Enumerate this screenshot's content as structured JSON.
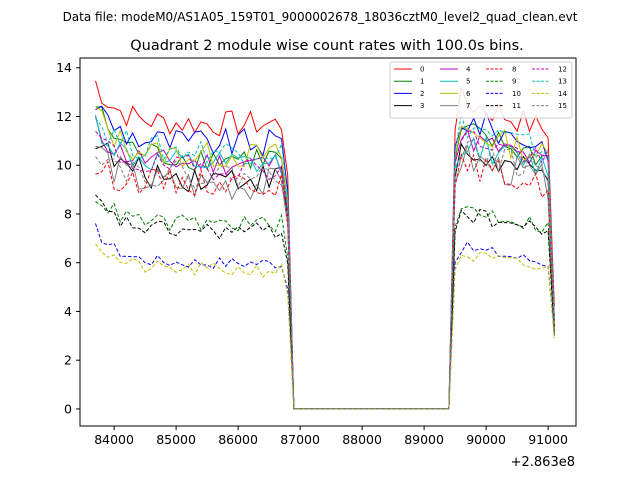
{
  "chart_data": {
    "type": "line",
    "suptitle": "Data file: modeM0/AS1A05_159T01_9000002678_18036cztM0_level2_quad_clean.evt",
    "title": "Quadrant 2 module wise count rates with 100.0s bins.",
    "xlabel": "",
    "ylabel": "",
    "x_offset_label": "+2.863e8",
    "xlim": [
      83450,
      91450
    ],
    "ylim": [
      -0.7,
      14.4
    ],
    "xticks": [
      84000,
      85000,
      86000,
      87000,
      88000,
      89000,
      90000,
      91000
    ],
    "yticks": [
      0,
      2,
      4,
      6,
      8,
      10,
      12,
      14
    ],
    "xticklabels": [
      "84000",
      "85000",
      "86000",
      "87000",
      "88000",
      "89000",
      "90000",
      "91000"
    ],
    "yticklabels": [
      "0",
      "2",
      "4",
      "6",
      "8",
      "10",
      "12",
      "14"
    ],
    "legend_position": "top-right",
    "segment_breaks": {
      "seg1_x": [
        83700,
        86800
      ],
      "drop_to_zero_x": 86900,
      "zero_x": [
        86900,
        89400
      ],
      "seg2_x": [
        89500,
        91100
      ],
      "bin_seconds": 100
    },
    "series": [
      {
        "name": "0",
        "color": "#ff0000",
        "dash": false,
        "level1": 11.7,
        "level2": 11.8,
        "start": 13.4,
        "end": 4.2,
        "noise": 0.55
      },
      {
        "name": "1",
        "color": "#008000",
        "dash": false,
        "level1": 10.3,
        "level2": 10.6,
        "start": 12.5,
        "end": 3.4,
        "noise": 0.55
      },
      {
        "name": "2",
        "color": "#0000ff",
        "dash": false,
        "level1": 10.9,
        "level2": 11.1,
        "start": 12.6,
        "end": 3.8,
        "noise": 0.6
      },
      {
        "name": "3",
        "color": "#000000",
        "dash": false,
        "level1": 9.5,
        "level2": 9.8,
        "start": 11.2,
        "end": 3.3,
        "noise": 0.6
      },
      {
        "name": "4",
        "color": "#bf00bf",
        "dash": false,
        "level1": 10.1,
        "level2": 10.4,
        "start": 11.6,
        "end": 3.6,
        "noise": 0.5
      },
      {
        "name": "5",
        "color": "#00bfbf",
        "dash": false,
        "level1": 10.0,
        "level2": 10.2,
        "start": 11.8,
        "end": 3.5,
        "noise": 0.55
      },
      {
        "name": "6",
        "color": "#bfbf00",
        "dash": false,
        "level1": 10.4,
        "level2": 10.7,
        "start": 12.3,
        "end": 3.6,
        "noise": 0.55
      },
      {
        "name": "7",
        "color": "#808080",
        "dash": false,
        "level1": 9.2,
        "level2": 9.6,
        "start": 10.9,
        "end": 3.2,
        "noise": 0.7
      },
      {
        "name": "8",
        "color": "#ff0000",
        "dash": true,
        "level1": 9.3,
        "level2": 9.4,
        "start": 9.9,
        "end": 3.4,
        "noise": 0.55
      },
      {
        "name": "9",
        "color": "#008000",
        "dash": true,
        "level1": 7.6,
        "level2": 7.7,
        "start": 8.8,
        "end": 3.0,
        "noise": 0.35
      },
      {
        "name": "10",
        "color": "#0000ff",
        "dash": true,
        "level1": 6.0,
        "level2": 6.2,
        "start": 7.4,
        "end": 3.0,
        "noise": 0.25
      },
      {
        "name": "11",
        "color": "#000000",
        "dash": true,
        "level1": 7.3,
        "level2": 7.5,
        "start": 8.6,
        "end": 3.1,
        "noise": 0.35
      },
      {
        "name": "12",
        "color": "#bf00bf",
        "dash": true,
        "level1": 9.9,
        "level2": 10.5,
        "start": 11.3,
        "end": 3.5,
        "noise": 0.5
      },
      {
        "name": "13",
        "color": "#00bfbf",
        "dash": true,
        "level1": 10.6,
        "level2": 10.9,
        "start": 12.0,
        "end": 3.7,
        "noise": 0.55
      },
      {
        "name": "14",
        "color": "#bfbf00",
        "dash": true,
        "level1": 5.7,
        "level2": 5.9,
        "start": 6.9,
        "end": 2.9,
        "noise": 0.3
      },
      {
        "name": "15",
        "color": "#808080",
        "dash": true,
        "level1": 9.6,
        "level2": 10.0,
        "start": 10.8,
        "end": 3.3,
        "noise": 0.55
      }
    ]
  }
}
